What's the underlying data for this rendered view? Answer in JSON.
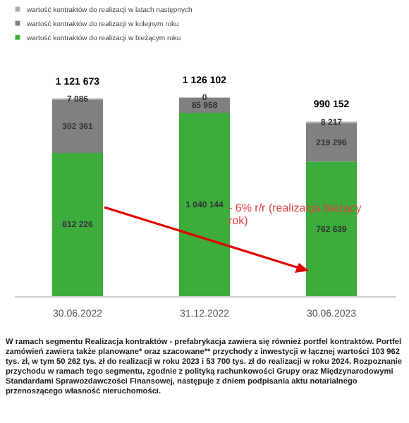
{
  "chart_data": {
    "type": "bar",
    "stacked": true,
    "data_labels": true,
    "legend": "top",
    "grid": false,
    "categories": [
      "30.06.2022",
      "31.12.2022",
      "30.06.2023"
    ],
    "series": [
      {
        "name": "wartość kontraktów do realizacji w bieżącym roku",
        "color": "#3cac3c",
        "values": [
          812226,
          1040144,
          762639
        ]
      },
      {
        "name": "wartość kontraktów do realizacji w kolejnym roku",
        "color": "#808080",
        "values": [
          302361,
          85958,
          219296
        ]
      },
      {
        "name": "wartość kontraktów do realizacji w latach następnych",
        "color": "#b0b0b0",
        "values": [
          7086,
          0,
          8217
        ]
      }
    ],
    "totals": [
      "1 121 673",
      "1 126 102",
      "990 152"
    ],
    "annotations": [
      "- 6% r/r (realizacja bieżący rok)",
      "W ramach segmentu Realizacja kontraktów - prefabrykacja zawiera się również portfel kontraktów. Portfel zamówień zawiera także planowane* oraz szacowane** przychody z inwestycji w łącznej wartości 103 962 tys. zł, w tym 50 262 tys. zł do realizacji w roku 2023 i 53 700 tys. zł do realizacji w roku 2024. Rozpoznanie przychodu w ramach tego segmentu, zgodnie z polityką rachunkowości Grupy oraz Międzynarodowymi Standardami Sprawozdawczości Finansowej, następuje z dniem podpisania aktu notarialnego przenoszącego własność nieruchomości."
    ]
  }
}
